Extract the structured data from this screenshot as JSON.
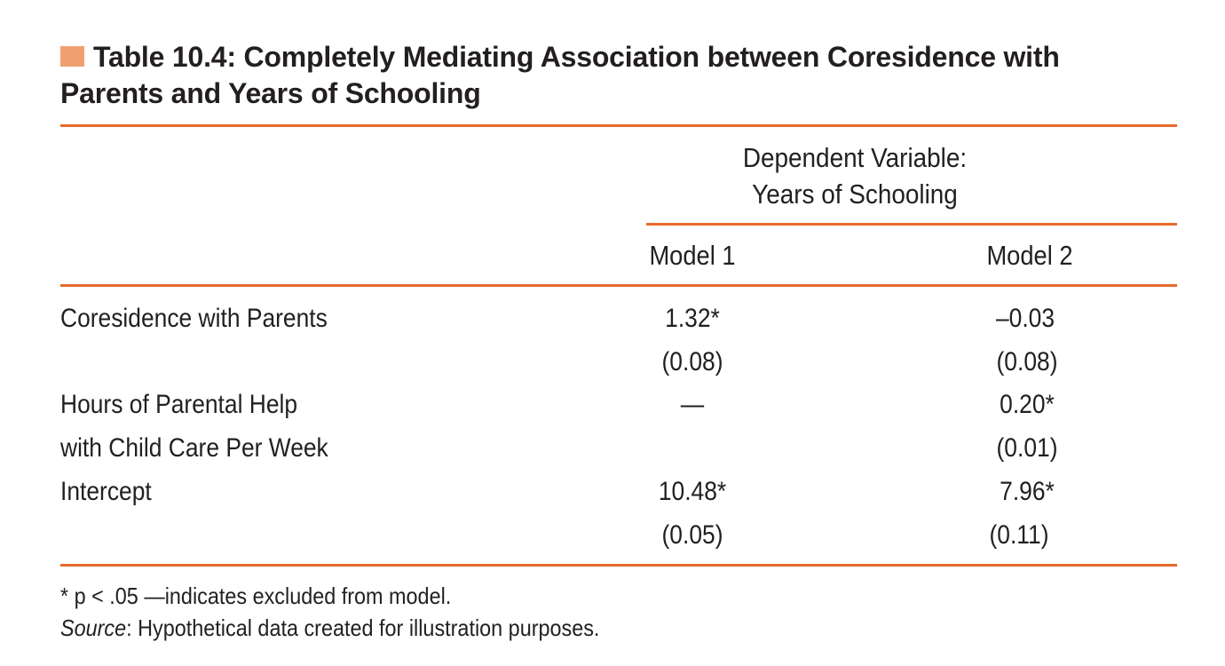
{
  "table": {
    "title": "Table 10.4:  Completely Mediating Association between Coresidence with Parents and Years of Schooling",
    "dependent_variable_line1": "Dependent Variable:",
    "dependent_variable_line2": "Years of Schooling",
    "columns": [
      "Model 1",
      "Model 2"
    ],
    "rows": [
      {
        "label_lines": [
          "Coresidence with Parents"
        ],
        "model1": "1.32*",
        "model1_se": "(0.08)",
        "model2": "–0.03",
        "model2_se": "(0.08)"
      },
      {
        "label_lines": [
          "Hours of Parental Help",
          "with Child Care Per Week"
        ],
        "model1": "—",
        "model1_se": "",
        "model2": "0.20*",
        "model2_se": "(0.01)"
      },
      {
        "label_lines": [
          "Intercept"
        ],
        "model1": "10.48*",
        "model1_se": "(0.05)",
        "model2": "7.96*",
        "model2_se": "(0.11)"
      }
    ],
    "footnote": "* p < .05 —indicates excluded from model.",
    "source_label": "Source",
    "source_text": ": Hypothetical data created for illustration purposes.",
    "accent_color": "#e8692a",
    "marker_color": "#f0a070"
  }
}
